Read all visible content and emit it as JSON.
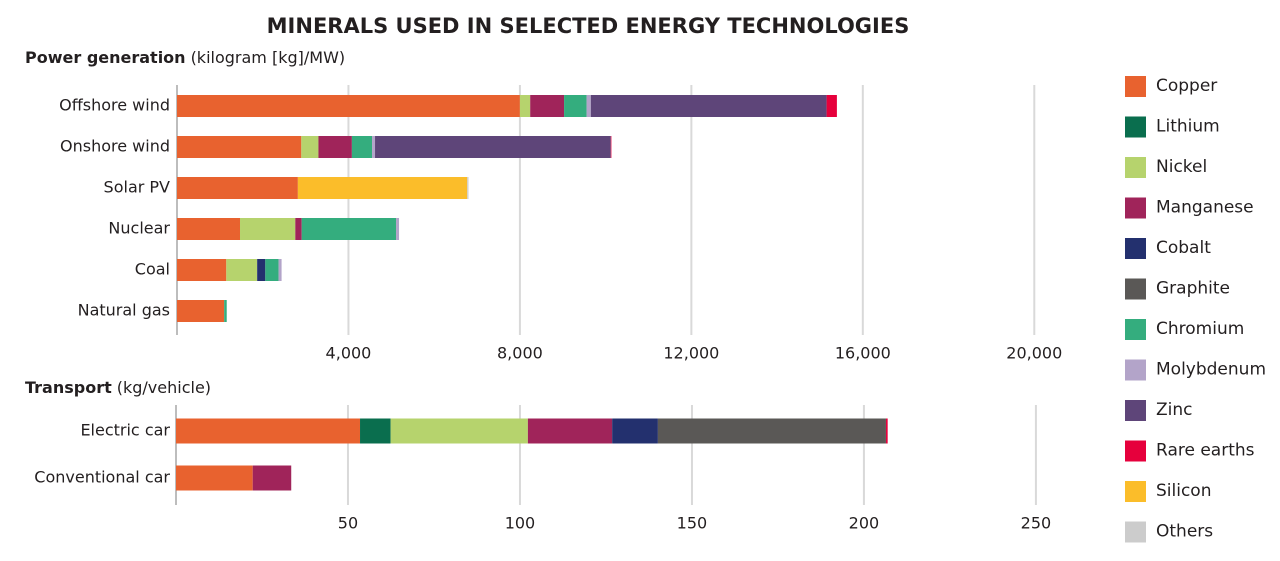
{
  "title": "MINERALS USED IN SELECTED ENERGY TECHNOLOGIES",
  "chart_data": [
    {
      "type": "stacked_bar_horizontal",
      "title": "Power generation",
      "subtitle": "(kilogram [kg]/MW)",
      "categories": [
        "Offshore wind",
        "Onshore wind",
        "Solar PV",
        "Nuclear",
        "Coal",
        "Natural gas"
      ],
      "xlim": [
        0,
        20600
      ],
      "xticks": [
        {
          "value": 4000,
          "label": "4,000"
        },
        {
          "value": 8000,
          "label": "8,000"
        },
        {
          "value": 12000,
          "label": "12,000"
        },
        {
          "value": 16000,
          "label": "16,000"
        },
        {
          "value": 20000,
          "label": "20,000"
        }
      ],
      "grid": true,
      "legend": "right",
      "series": [
        {
          "name": "Copper",
          "color": "#e8622f",
          "values": [
            8000,
            2900,
            2820,
            1470,
            1150,
            1100
          ]
        },
        {
          "name": "Lithium",
          "color": "#0a6e4e",
          "values": [
            0,
            0,
            0,
            0,
            0,
            0
          ]
        },
        {
          "name": "Nickel",
          "color": "#b6d36d",
          "values": [
            240,
            400,
            0,
            1290,
            720,
            0
          ]
        },
        {
          "name": "Manganese",
          "color": "#a0245a",
          "values": [
            790,
            780,
            0,
            150,
            0,
            0
          ]
        },
        {
          "name": "Cobalt",
          "color": "#23306e",
          "values": [
            0,
            0,
            0,
            0,
            190,
            0
          ]
        },
        {
          "name": "Graphite",
          "color": "#5a5856",
          "values": [
            0,
            0,
            0,
            0,
            0,
            0
          ]
        },
        {
          "name": "Chromium",
          "color": "#34ad7e",
          "values": [
            525,
            470,
            0,
            2200,
            310,
            60
          ]
        },
        {
          "name": "Molybdenum",
          "color": "#b3a4c9",
          "values": [
            100,
            70,
            0,
            70,
            70,
            0
          ]
        },
        {
          "name": "Zinc",
          "color": "#5e4579",
          "values": [
            5500,
            5500,
            0,
            0,
            0,
            0
          ]
        },
        {
          "name": "Rare earths",
          "color": "#e6003c",
          "values": [
            240,
            14,
            0,
            0,
            0,
            0
          ]
        },
        {
          "name": "Silicon",
          "color": "#fbbd2a",
          "values": [
            0,
            0,
            3950,
            0,
            0,
            0
          ]
        },
        {
          "name": "Others",
          "color": "#cccccc",
          "values": [
            0,
            0,
            30,
            0,
            0,
            0
          ]
        }
      ]
    },
    {
      "type": "stacked_bar_horizontal",
      "title": "Transport",
      "subtitle": "(kg/vehicle)",
      "categories": [
        "Electric car",
        "Conventional car"
      ],
      "xlim": [
        0,
        257
      ],
      "xticks": [
        50,
        100,
        150,
        200,
        250
      ],
      "grid": true,
      "series": [
        {
          "name": "Copper",
          "color": "#e8622f",
          "values": [
            53.5,
            22.3
          ]
        },
        {
          "name": "Lithium",
          "color": "#0a6e4e",
          "values": [
            8.9,
            0
          ]
        },
        {
          "name": "Nickel",
          "color": "#b6d36d",
          "values": [
            39.9,
            0
          ]
        },
        {
          "name": "Manganese",
          "color": "#a0245a",
          "values": [
            24.5,
            11.2
          ]
        },
        {
          "name": "Cobalt",
          "color": "#23306e",
          "values": [
            13.3,
            0
          ]
        },
        {
          "name": "Graphite",
          "color": "#5a5856",
          "values": [
            66.3,
            0
          ]
        },
        {
          "name": "Rare earths",
          "color": "#e6003c",
          "values": [
            0.5,
            0
          ]
        }
      ]
    }
  ]
}
